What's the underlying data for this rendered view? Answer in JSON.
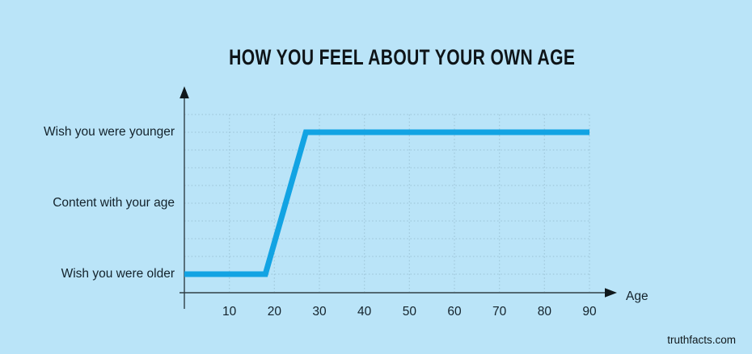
{
  "page": {
    "background": "#bae4f8",
    "watermark": "truthfacts.com"
  },
  "colors": {
    "line": "#12a3e3",
    "grid": "#9cc3d6",
    "axis": "#2f3e46",
    "arrow": "#10181c",
    "text": "#13222b"
  },
  "chart_data": {
    "type": "line",
    "title": "HOW YOU FEEL ABOUT YOUR OWN AGE",
    "xlabel": "Age",
    "x_ticks": [
      10,
      20,
      30,
      40,
      50,
      60,
      70,
      80,
      90
    ],
    "xlim": [
      0,
      90
    ],
    "y_categories": [
      "Wish you were older",
      "Content with your age",
      "Wish you were younger"
    ],
    "grid": "dotted",
    "legend": false,
    "series": [
      {
        "name": "How you feel about your own age",
        "points": [
          {
            "age": 0,
            "level": "Wish you were older"
          },
          {
            "age": 18,
            "level": "Wish you were older"
          },
          {
            "age": 27,
            "level": "Wish you were younger"
          },
          {
            "age": 90,
            "level": "Wish you were younger"
          }
        ]
      }
    ]
  }
}
